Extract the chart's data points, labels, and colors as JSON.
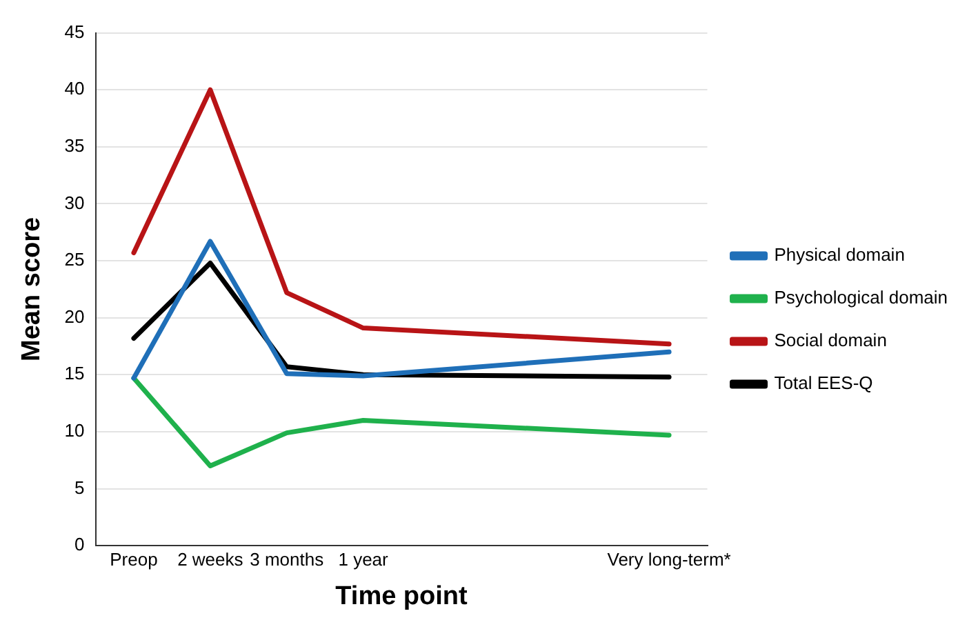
{
  "chart_data": {
    "type": "line",
    "xlabel": "Time point",
    "ylabel": "Mean score",
    "categories": [
      "Preop",
      "2 weeks",
      "3 months",
      "1 year",
      null,
      null,
      null,
      "Very long-term*"
    ],
    "ylim": [
      0,
      45
    ],
    "yticks": [
      0,
      5,
      10,
      15,
      20,
      25,
      30,
      35,
      40,
      45
    ],
    "grid": "y",
    "legend": "right",
    "marker": "none",
    "line_style": "solid",
    "series": [
      {
        "name": "Physical domain",
        "color": "#1f6fb8",
        "values": [
          14.7,
          26.7,
          15.1,
          14.9,
          null,
          null,
          null,
          17.0
        ]
      },
      {
        "name": "Psychological domain",
        "color": "#1fb14c",
        "values": [
          14.7,
          7.0,
          9.9,
          11.0,
          null,
          null,
          null,
          9.7
        ]
      },
      {
        "name": "Social domain",
        "color": "#b81416",
        "values": [
          25.7,
          40.0,
          22.2,
          19.1,
          null,
          null,
          null,
          17.7
        ]
      },
      {
        "name": "Total EES-Q",
        "color": "#000000",
        "values": [
          18.2,
          24.8,
          15.7,
          15.0,
          null,
          null,
          null,
          14.8
        ]
      }
    ]
  }
}
